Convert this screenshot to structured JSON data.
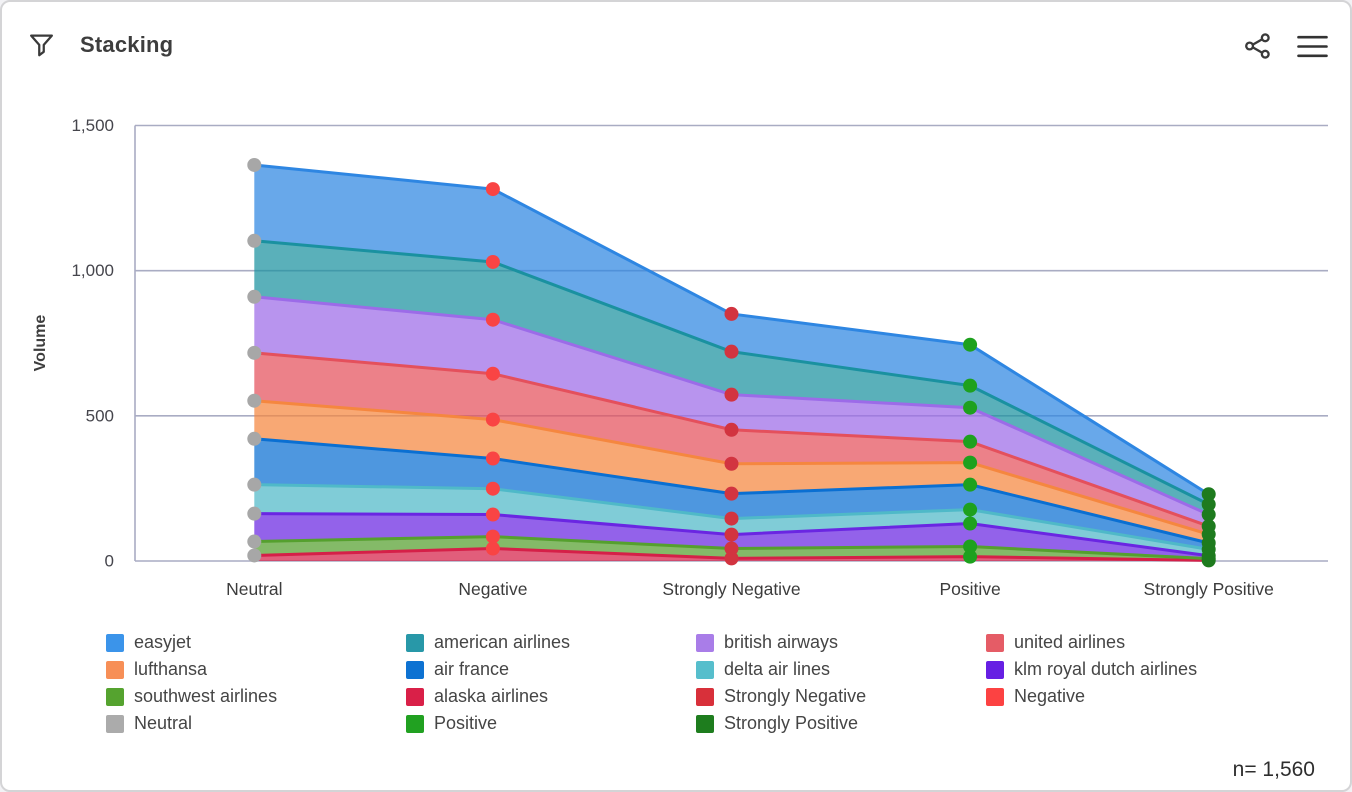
{
  "header": {
    "title": "Stacking",
    "icons": [
      "filter-icon",
      "share-icon",
      "menu-icon"
    ]
  },
  "footer": {
    "n_label": "n= 1,560"
  },
  "legend": {
    "items": [
      {
        "label": "easyjet",
        "color": "#3B94EA"
      },
      {
        "label": "lufthansa",
        "color": "#F78F57"
      },
      {
        "label": "southwest airlines",
        "color": "#55A32F"
      },
      {
        "label": "Neutral",
        "color": "#ABABAB"
      },
      {
        "label": "american airlines",
        "color": "#2898A8"
      },
      {
        "label": "air france",
        "color": "#0D72D2"
      },
      {
        "label": "alaska airlines",
        "color": "#D92048"
      },
      {
        "label": "Positive",
        "color": "#21A121"
      },
      {
        "label": "british airways",
        "color": "#A97DE8"
      },
      {
        "label": "delta air lines",
        "color": "#56BECC"
      },
      {
        "label": "Strongly Negative",
        "color": "#D8303A"
      },
      {
        "label": "Strongly Positive",
        "color": "#1E7D1E"
      },
      {
        "label": "united airlines",
        "color": "#E55C66"
      },
      {
        "label": "klm royal dutch airlines",
        "color": "#661FE3"
      },
      {
        "label": "Negative",
        "color": "#FC4242"
      }
    ]
  },
  "chart_data": {
    "type": "area",
    "stacked": true,
    "title": "Stacking",
    "xlabel": "",
    "ylabel": "Volume",
    "ylim": [
      0,
      1500
    ],
    "y_ticks": [
      0,
      500,
      1000,
      1500
    ],
    "y_tick_labels": [
      "0",
      "500",
      "1,000",
      "1,500"
    ],
    "grid": true,
    "legend_position": "bottom",
    "categories": [
      "Neutral",
      "Negative",
      "Strongly Negative",
      "Positive",
      "Strongly Positive"
    ],
    "point_colors_by_category": [
      "#A7A7A7",
      "#F94444",
      "#D23440",
      "#1EA11E",
      "#1E7B1E"
    ],
    "series": [
      {
        "name": "easyjet",
        "line": "#2E86E2",
        "values": [
          261,
          251,
          130,
          141,
          35
        ]
      },
      {
        "name": "american airlines",
        "line": "#1A91A0",
        "values": [
          193,
          199,
          148,
          76,
          35
        ]
      },
      {
        "name": "british airways",
        "line": "#9C6BE8",
        "values": [
          193,
          186,
          121,
          117,
          40
        ]
      },
      {
        "name": "united airlines",
        "line": "#E4505C",
        "values": [
          165,
          158,
          117,
          72,
          28
        ]
      },
      {
        "name": "lufthansa",
        "line": "#F5873F",
        "values": [
          131,
          134,
          103,
          76,
          30
        ]
      },
      {
        "name": "air france",
        "line": "#0A6FD2",
        "values": [
          158,
          104,
          86,
          86,
          22
        ]
      },
      {
        "name": "delta air lines",
        "line": "#4FB9C8",
        "values": [
          100,
          89,
          55,
          48,
          22
        ]
      },
      {
        "name": "klm royal dutch airlines",
        "line": "#6A26E2",
        "values": [
          96,
          76,
          48,
          79,
          10
        ]
      },
      {
        "name": "southwest airlines",
        "line": "#55A02E",
        "values": [
          48,
          41,
          34,
          35,
          6
        ]
      },
      {
        "name": "alaska airlines",
        "line": "#D52048",
        "values": [
          19,
          43,
          9,
          15,
          2
        ]
      }
    ],
    "totals_by_category": [
      1364,
      1281,
      851,
      745,
      230
    ]
  }
}
